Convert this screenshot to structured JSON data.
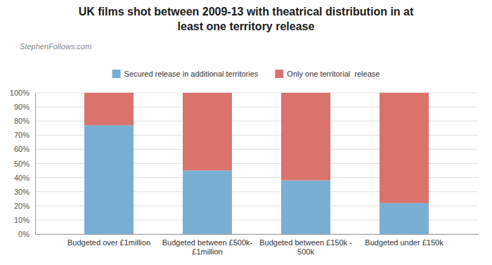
{
  "chart_data": {
    "type": "bar",
    "title": "UK films shot between 2009-13 with theatrical distribution in at\nleast one territory release",
    "annotations": [
      {
        "text": "StephenFollows.com"
      }
    ],
    "categories": [
      "Budgeted over £1million",
      "Budgeted between £500k-\n£1million",
      "Budgeted between £150k -\n500k",
      "Budgeted under £150k"
    ],
    "series": [
      {
        "name": "Secured release in additional territories",
        "color": "#7aafd4",
        "values": [
          77,
          45,
          38,
          22
        ]
      },
      {
        "name": "Only one territorial  release",
        "color": "#d9736b",
        "values": [
          23,
          55,
          62,
          78
        ]
      }
    ],
    "stacked": true,
    "ylim": [
      0,
      100
    ],
    "yticks": [
      {
        "value": 0,
        "label": "0%"
      },
      {
        "value": 10,
        "label": "10%"
      },
      {
        "value": 20,
        "label": "20%"
      },
      {
        "value": 30,
        "label": "30%"
      },
      {
        "value": 40,
        "label": "40%"
      },
      {
        "value": 50,
        "label": "50%"
      },
      {
        "value": 60,
        "label": "60%"
      },
      {
        "value": 70,
        "label": "70%"
      },
      {
        "value": 80,
        "label": "80%"
      },
      {
        "value": 90,
        "label": "90%"
      },
      {
        "value": 100,
        "label": "100%"
      }
    ],
    "grid": true,
    "legend": "top"
  }
}
